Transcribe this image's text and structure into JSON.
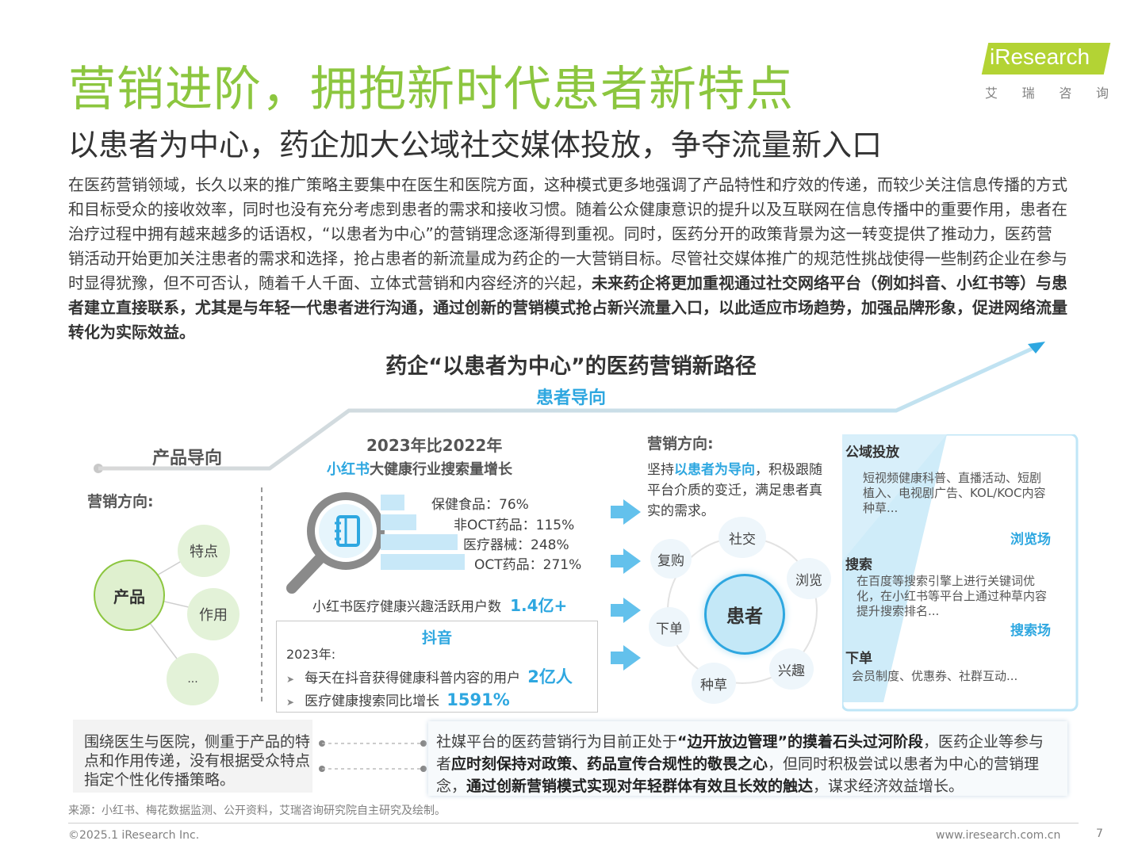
{
  "header": {
    "title": "营销进阶，拥抱新时代患者新特点",
    "subtitle": "以患者为中心，药企加大公域社交媒体投放，争夺流量新入口",
    "logo_text": "iResearch",
    "logo_cn": [
      "艾",
      "瑞",
      "咨",
      "询"
    ]
  },
  "intro": {
    "normal": "在医药营销领域，长久以来的推广策略主要集中在医生和医院方面，这种模式更多地强调了产品特性和疗效的传递，而较少关注信息传播的方式和目标受众的接收效率，同时也没有充分考虑到患者的需求和接收习惯。随着公众健康意识的提升以及互联网在信息传播中的重要作用，患者在治疗过程中拥有越来越多的话语权，“以患者为中心”的营销理念逐渐得到重视。同时，医药分开的政策背景为这一转变提供了推动力，医药营销活动开始更加关注患者的需求和选择，抢占患者的新流量成为药企的一大营销目标。尽管社交媒体推广的规范性挑战使得一些制药企业在参与时显得犹豫，但不可否认，随着千人千面、立体式营销和内容经济的兴起，",
    "bold": "未来药企将更加重视通过社交网络平台（例如抖音、小红书等）与患者建立直接联系，尤其是与年轻一代患者进行沟通，通过创新的营销模式抢占新兴流量入口，以此适应市场趋势，加强品牌形象，促进网络流量转化为实际效益。"
  },
  "diagram": {
    "title": "药企“以患者为中心”的医药营销新路径",
    "patient_orientation": "患者导向",
    "product_orientation": "产品导向",
    "left": {
      "marketing_direction": "营销方向:",
      "center": "产品",
      "nodes": [
        "特点",
        "作用",
        "..."
      ]
    },
    "middle": {
      "year_compare": "2023年比2022年",
      "xhs_brand": "小红书",
      "xhs_title_rest": "大健康行业搜索量增长",
      "bars": [
        {
          "label": "保健食品：76%",
          "value": 76
        },
        {
          "label": "非OCT药品：115%",
          "value": 115
        },
        {
          "label": "医疗器械：248%",
          "value": 248
        },
        {
          "label": "OCT药品：271%",
          "value": 271
        }
      ],
      "xhs_users_label": "小红书医疗健康兴趣活跃用户数",
      "xhs_users_value": "1.4亿+",
      "douyin": {
        "title": "抖音",
        "year": "2023年:",
        "items": [
          {
            "label": "每天在抖音获得健康科普内容的用户",
            "value": "2亿人"
          },
          {
            "label": "医疗健康搜索同比增长",
            "value": "1591%"
          }
        ]
      }
    },
    "right": {
      "marketing_direction": "营销方向:",
      "desc_pre": "坚持",
      "desc_highlight": "以患者为导向",
      "desc_post": "，积极跟随平台介质的变迁，满足患者真实的需求。",
      "center": "患者",
      "nodes": [
        "社交",
        "浏览",
        "兴趣",
        "种草",
        "下单",
        "复购"
      ]
    },
    "panel": {
      "sections": [
        {
          "title": "公域投放",
          "text": "短视频健康科普、直播活动、短剧植入、电视剧广告、KOL/KOC内容种草...",
          "tag": "浏览场"
        },
        {
          "title": "搜索",
          "text": "在百度等搜索引擎上进行关键词优化，在小红书等平台上通过种草内容提升搜索排名...",
          "tag": "搜索场"
        },
        {
          "title": "下单",
          "text": "会员制度、优惠券、社群互动..."
        }
      ]
    }
  },
  "bottom": {
    "left": "围绕医生与医院，侧重于产品的特点和作用传递，没有根据受众特点指定个性化传播策略。",
    "right": {
      "p1": "社媒平台的医药营销行为目前正处于",
      "b1": "“边开放边管理”的摸着石头过河阶段",
      "p2": "，医药企业等参与者",
      "b2": "应时刻保持对政策、药品宣传合规性的敬畏之心",
      "p3": "，但同时积极尝试以患者为中心的营销理念，",
      "b3": "通过创新营销模式实现对年轻群体有效且长效的触达",
      "p4": "，谋求经济效益增长。"
    }
  },
  "footer": {
    "source": "来源：小红书、梅花数据监测、公开资料，艾瑞咨询研究院自主研究及绘制。",
    "copyright": "©2025.1 iResearch Inc.",
    "site": "www.iresearch.com.cn",
    "page": "7"
  },
  "colors": {
    "title_green": "#8cc63f",
    "accent_blue": "#2ea7e0",
    "node_green": "#dff0cf",
    "panel_blue": "#bfe6f7"
  }
}
